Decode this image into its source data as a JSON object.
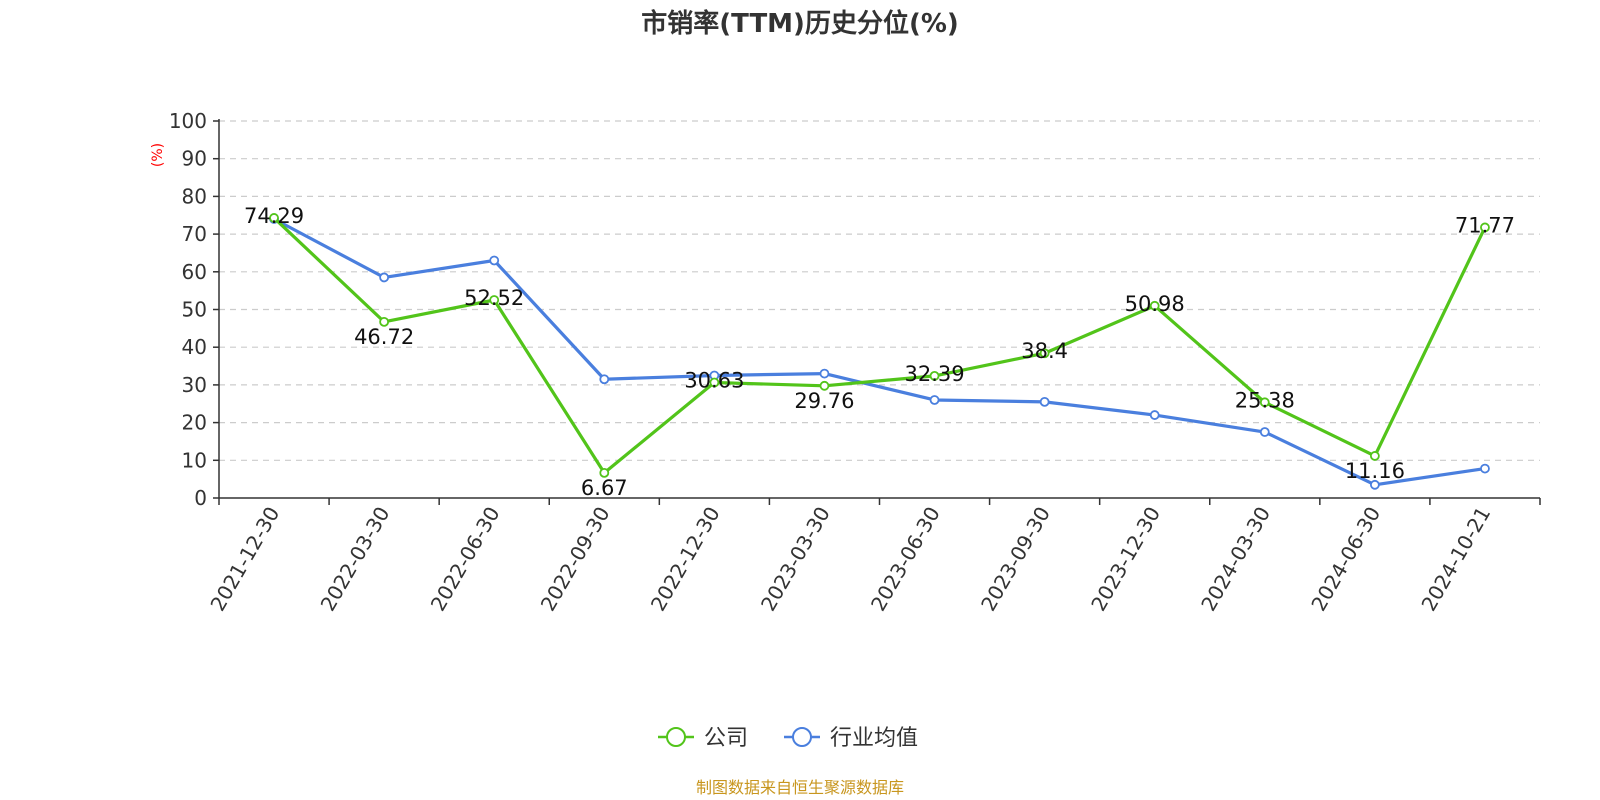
{
  "chart_data": {
    "type": "line",
    "title": "市销率(TTM)历史分位(%)",
    "ylabel": "(%)",
    "xlabel": "",
    "ylim": [
      0,
      100
    ],
    "yticks": [
      0,
      10,
      20,
      30,
      40,
      50,
      60,
      70,
      80,
      90,
      100
    ],
    "grid": true,
    "legend_position": "bottom-center",
    "categories": [
      "2021-12-30",
      "2022-03-30",
      "2022-06-30",
      "2022-09-30",
      "2022-12-30",
      "2023-03-30",
      "2023-06-30",
      "2023-09-30",
      "2023-12-30",
      "2024-03-30",
      "2024-06-30",
      "2024-10-21"
    ],
    "series": [
      {
        "name": "公司",
        "color": "#52c41a",
        "values": [
          74.29,
          46.72,
          52.52,
          6.67,
          30.63,
          29.76,
          32.39,
          38.4,
          50.98,
          25.38,
          11.16,
          71.77
        ],
        "labels": [
          "74.29",
          "46.72",
          "52.52",
          "6.67",
          "30.63",
          "29.76",
          "32.39",
          "38.4",
          "50.98",
          "25.38",
          "11.16",
          "71.77"
        ]
      },
      {
        "name": "行业均值",
        "color": "#4a7fde",
        "values": [
          74.0,
          58.5,
          63.0,
          31.5,
          32.5,
          33.0,
          26.0,
          25.5,
          22.0,
          17.5,
          3.5,
          7.8
        ]
      }
    ],
    "source": "制图数据来自恒生聚源数据库"
  }
}
